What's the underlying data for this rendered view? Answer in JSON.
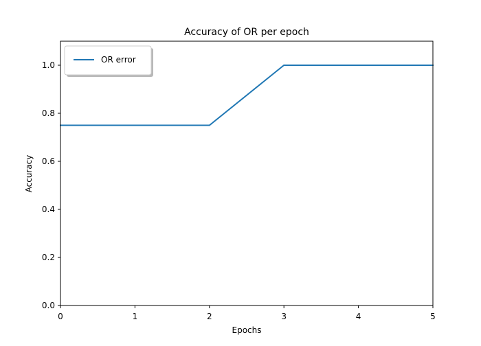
{
  "chart_data": {
    "type": "line",
    "title": "Accuracy of OR per epoch",
    "xlabel": "Epochs",
    "ylabel": "Accuracy",
    "xlim": [
      0,
      5
    ],
    "ylim": [
      0,
      1.1
    ],
    "xticks": [
      "0",
      "1",
      "2",
      "3",
      "4",
      "5"
    ],
    "yticks": [
      "0.0",
      "0.2",
      "0.4",
      "0.6",
      "0.8",
      "1.0"
    ],
    "grid": false,
    "legend_position": "top-left",
    "series": [
      {
        "name": "OR error",
        "color": "#1f77b4",
        "x": [
          0,
          1,
          2,
          3,
          4,
          5
        ],
        "y": [
          0.75,
          0.75,
          0.75,
          1.0,
          1.0,
          1.0
        ]
      }
    ]
  }
}
